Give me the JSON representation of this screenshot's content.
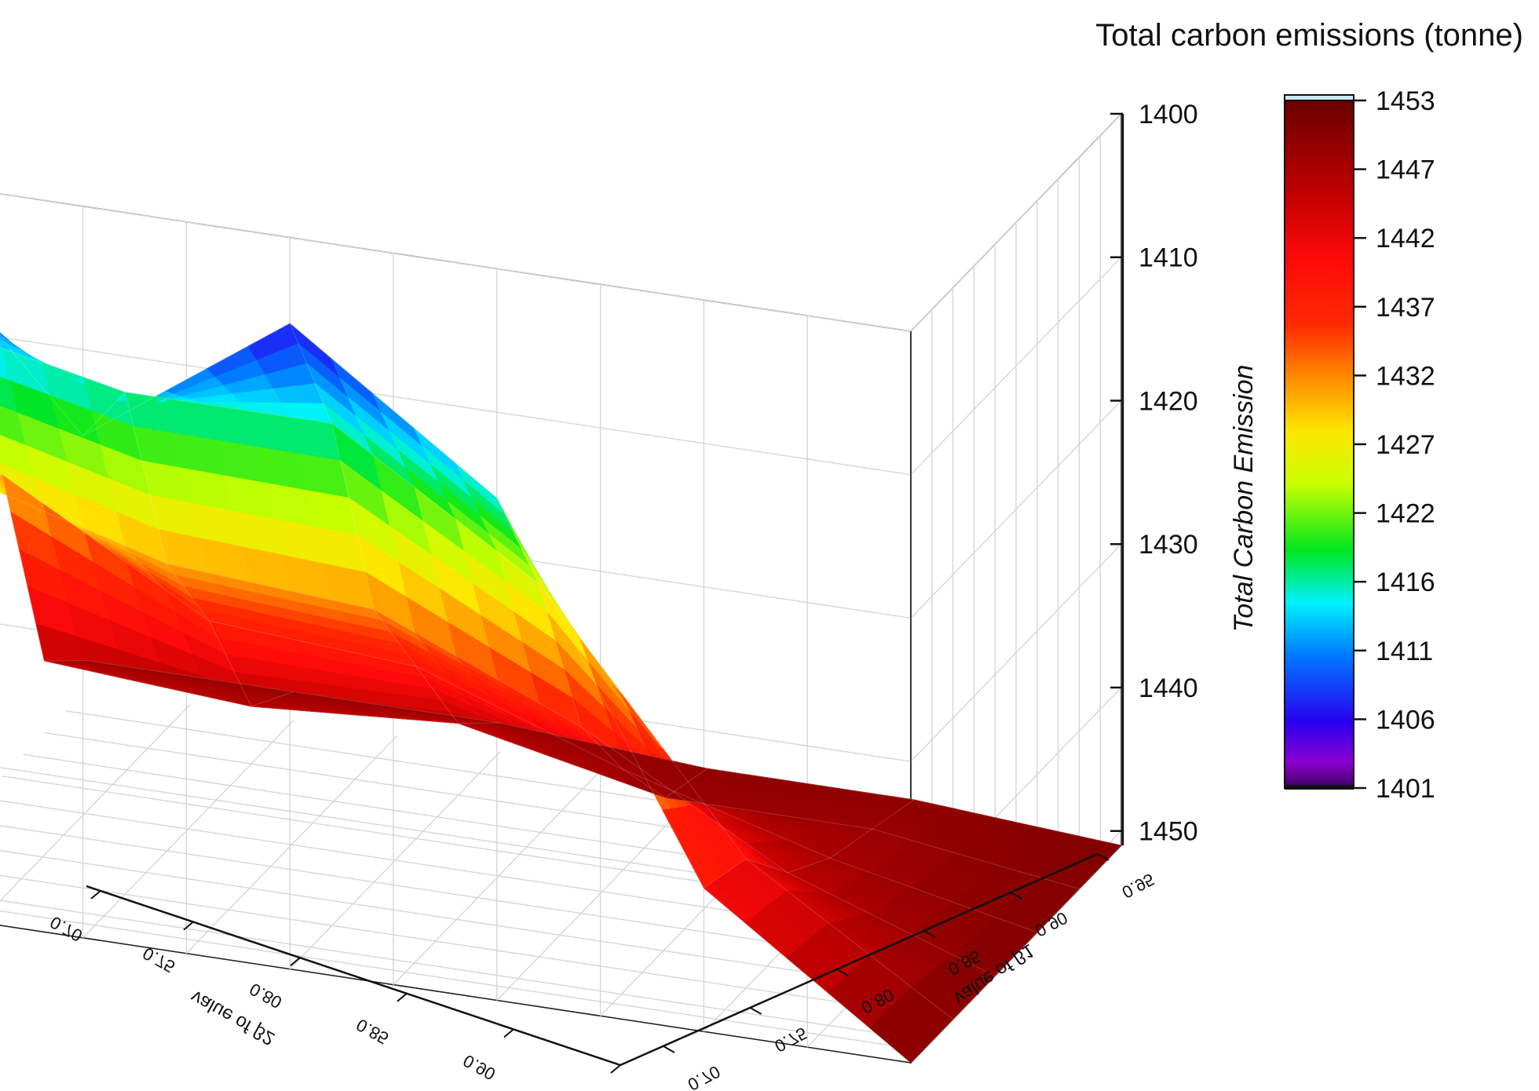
{
  "chart_data": {
    "type": "surface3d",
    "colorbar": {
      "title": "Total carbon emissions (tonne)",
      "ticks": [
        1453,
        1447,
        1442,
        1437,
        1432,
        1427,
        1422,
        1416,
        1411,
        1406,
        1401
      ],
      "range": [
        1401,
        1453
      ],
      "colors": [
        {
          "value": 1453,
          "color": "#6a0000"
        },
        {
          "value": 1446,
          "color": "#c00000"
        },
        {
          "value": 1441,
          "color": "#ff0a0a"
        },
        {
          "value": 1436,
          "color": "#ff2a00"
        },
        {
          "value": 1432,
          "color": "#ff8c00"
        },
        {
          "value": 1428,
          "color": "#ffe600"
        },
        {
          "value": 1424,
          "color": "#c8ff00"
        },
        {
          "value": 1419,
          "color": "#00e61e"
        },
        {
          "value": 1415,
          "color": "#00f2ff"
        },
        {
          "value": 1411,
          "color": "#0078ff"
        },
        {
          "value": 1406,
          "color": "#2800f0"
        },
        {
          "value": 1403,
          "color": "#8c00d2"
        },
        {
          "value": 1401,
          "color": "#3c0060"
        }
      ]
    },
    "z_axis": {
      "label": "Total Carbon Emission",
      "ticks": [
        1400,
        1410,
        1420,
        1430,
        1440,
        1450
      ],
      "range": [
        1400,
        1451
      ]
    },
    "x_axis": {
      "label": "value of β2",
      "ticks": [
        "0.70",
        "0.75",
        "0.80",
        "0.85",
        "0.90",
        "0.95"
      ],
      "range": [
        0.7,
        0.95
      ]
    },
    "y_axis": {
      "label": "value of β1",
      "ticks": [
        "0.70",
        "0.75",
        "0.80",
        "0.85",
        "0.90",
        "0.95"
      ],
      "range": [
        0.7,
        0.95
      ]
    },
    "grid": true,
    "surface": {
      "beta2": [
        0.7,
        0.75,
        0.8,
        0.85,
        0.9,
        0.95
      ],
      "beta1": [
        0.7,
        0.75,
        0.8,
        0.85,
        0.9,
        0.95
      ],
      "z": [
        [
          1449,
          1449,
          1449,
          1450,
          1450,
          1451
        ],
        [
          1446,
          1447,
          1446,
          1449,
          1449,
          1451
        ],
        [
          1430,
          1438,
          1439,
          1444,
          1448,
          1451
        ],
        [
          1427,
          1431,
          1432,
          1438,
          1446,
          1451
        ],
        [
          1413,
          1416,
          1416,
          1425,
          1442,
          1451
        ],
        [
          1401,
          1416,
          1406,
          1416,
          1441,
          1451
        ]
      ]
    }
  }
}
